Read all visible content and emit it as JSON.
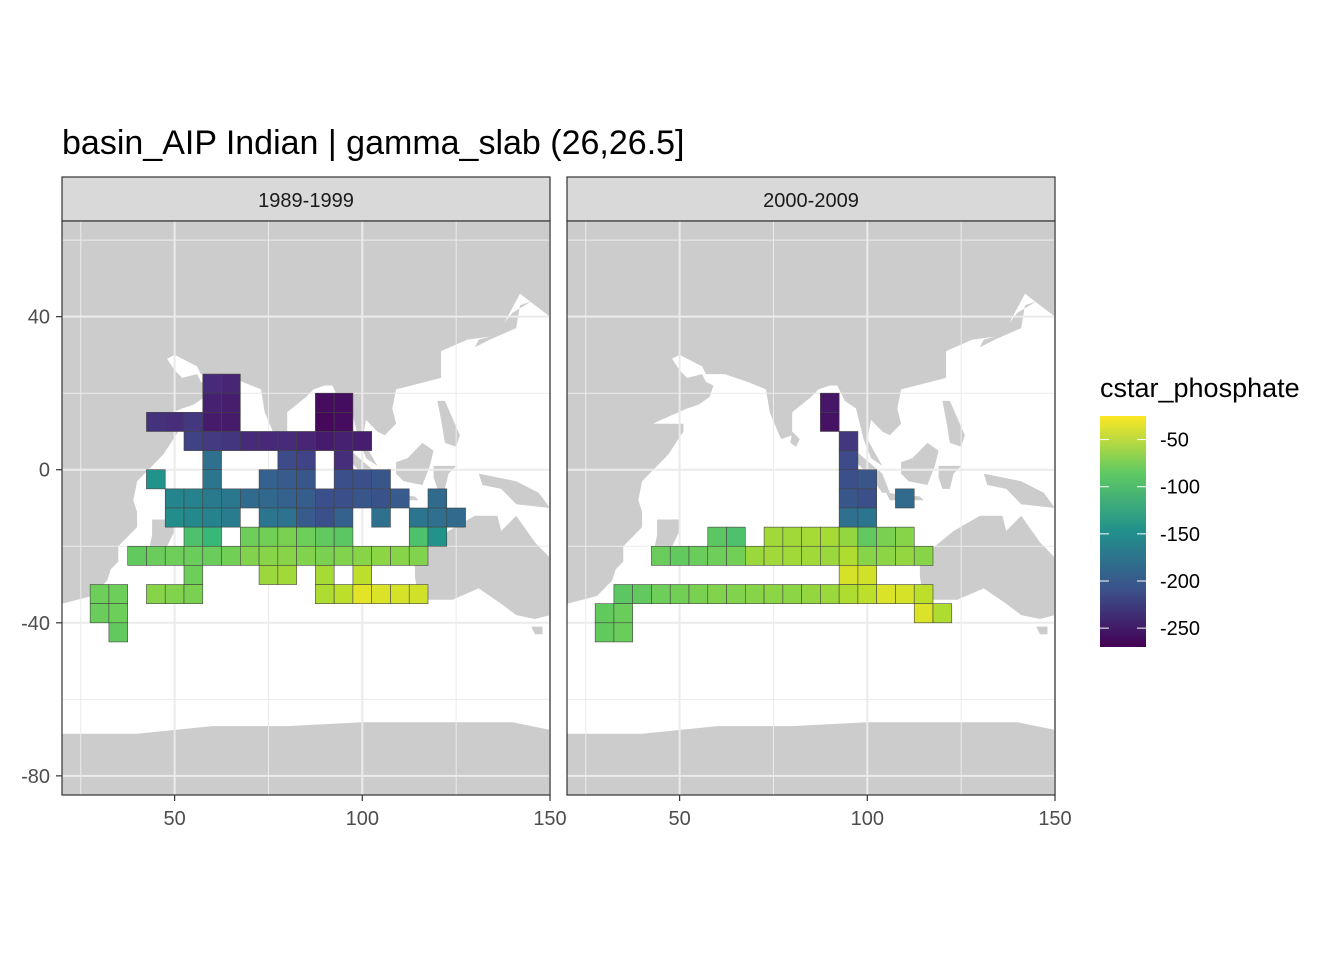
{
  "chart_data": {
    "type": "heatmap",
    "title": "basin_AIP Indian | gamma_slab (26,26.5]",
    "xlabel": "",
    "ylabel": "",
    "xlim": [
      20,
      150
    ],
    "ylim": [
      -85,
      65
    ],
    "x_ticks": [
      50,
      100,
      150
    ],
    "y_ticks": [
      40,
      0,
      -40,
      -80
    ],
    "x_tick_labels": [
      "50",
      "100",
      "150"
    ],
    "y_tick_labels": [
      "40",
      "0",
      "-40",
      "-80"
    ],
    "grid": true,
    "cell_size_deg": 5,
    "legend": {
      "title": "cstar_phosphate",
      "position": "right",
      "breaks": [
        -50,
        -100,
        -150,
        -200,
        -250
      ],
      "labels": [
        "-50",
        "-100",
        "-150",
        "-200",
        "-250"
      ],
      "limits": [
        -270,
        -25
      ],
      "colormap": "viridis"
    },
    "colors": {
      "land": "#cccccc",
      "ocean": "#ffffff",
      "strip": "#d9d9d9",
      "grid": "#ebebeb",
      "border": "#333333"
    },
    "panels": [
      {
        "label": "1989-1999",
        "cells": [
          {
            "lon": 60,
            "lat": 22.5,
            "v": -240
          },
          {
            "lon": 65,
            "lat": 22.5,
            "v": -245
          },
          {
            "lon": 60,
            "lat": 17.5,
            "v": -248
          },
          {
            "lon": 65,
            "lat": 17.5,
            "v": -250
          },
          {
            "lon": 90,
            "lat": 17.5,
            "v": -262
          },
          {
            "lon": 95,
            "lat": 17.5,
            "v": -262
          },
          {
            "lon": 45,
            "lat": 12.5,
            "v": -235
          },
          {
            "lon": 50,
            "lat": 12.5,
            "v": -238
          },
          {
            "lon": 55,
            "lat": 12.5,
            "v": -230
          },
          {
            "lon": 60,
            "lat": 12.5,
            "v": -252
          },
          {
            "lon": 65,
            "lat": 12.5,
            "v": -252
          },
          {
            "lon": 90,
            "lat": 12.5,
            "v": -265
          },
          {
            "lon": 95,
            "lat": 12.5,
            "v": -262
          },
          {
            "lon": 55,
            "lat": 7.5,
            "v": -222
          },
          {
            "lon": 60,
            "lat": 7.5,
            "v": -228
          },
          {
            "lon": 65,
            "lat": 7.5,
            "v": -232
          },
          {
            "lon": 70,
            "lat": 7.5,
            "v": -240
          },
          {
            "lon": 75,
            "lat": 7.5,
            "v": -242
          },
          {
            "lon": 80,
            "lat": 7.5,
            "v": -240
          },
          {
            "lon": 85,
            "lat": 7.5,
            "v": -245
          },
          {
            "lon": 90,
            "lat": 7.5,
            "v": -252
          },
          {
            "lon": 95,
            "lat": 7.5,
            "v": -248
          },
          {
            "lon": 100,
            "lat": 7.5,
            "v": -250
          },
          {
            "lon": 60,
            "lat": 2.5,
            "v": -180
          },
          {
            "lon": 80,
            "lat": 2.5,
            "v": -215
          },
          {
            "lon": 85,
            "lat": 2.5,
            "v": -220
          },
          {
            "lon": 95,
            "lat": 2.5,
            "v": -238
          },
          {
            "lon": 45,
            "lat": -2.5,
            "v": -145
          },
          {
            "lon": 60,
            "lat": -2.5,
            "v": -175
          },
          {
            "lon": 75,
            "lat": -2.5,
            "v": -195
          },
          {
            "lon": 80,
            "lat": -2.5,
            "v": -200
          },
          {
            "lon": 85,
            "lat": -2.5,
            "v": -205
          },
          {
            "lon": 95,
            "lat": -2.5,
            "v": -210
          },
          {
            "lon": 100,
            "lat": -2.5,
            "v": -210
          },
          {
            "lon": 105,
            "lat": -2.5,
            "v": -205
          },
          {
            "lon": 50,
            "lat": -7.5,
            "v": -158
          },
          {
            "lon": 55,
            "lat": -7.5,
            "v": -160
          },
          {
            "lon": 60,
            "lat": -7.5,
            "v": -170
          },
          {
            "lon": 65,
            "lat": -7.5,
            "v": -172
          },
          {
            "lon": 70,
            "lat": -7.5,
            "v": -185
          },
          {
            "lon": 75,
            "lat": -7.5,
            "v": -188
          },
          {
            "lon": 80,
            "lat": -7.5,
            "v": -195
          },
          {
            "lon": 85,
            "lat": -7.5,
            "v": -198
          },
          {
            "lon": 90,
            "lat": -7.5,
            "v": -210
          },
          {
            "lon": 95,
            "lat": -7.5,
            "v": -210
          },
          {
            "lon": 100,
            "lat": -7.5,
            "v": -205
          },
          {
            "lon": 105,
            "lat": -7.5,
            "v": -208
          },
          {
            "lon": 110,
            "lat": -7.5,
            "v": -200
          },
          {
            "lon": 120,
            "lat": -7.5,
            "v": -185
          },
          {
            "lon": 50,
            "lat": -12.5,
            "v": -150
          },
          {
            "lon": 55,
            "lat": -12.5,
            "v": -155
          },
          {
            "lon": 60,
            "lat": -12.5,
            "v": -160
          },
          {
            "lon": 65,
            "lat": -12.5,
            "v": -168
          },
          {
            "lon": 75,
            "lat": -12.5,
            "v": -175
          },
          {
            "lon": 80,
            "lat": -12.5,
            "v": -178
          },
          {
            "lon": 85,
            "lat": -12.5,
            "v": -200
          },
          {
            "lon": 90,
            "lat": -12.5,
            "v": -210
          },
          {
            "lon": 95,
            "lat": -12.5,
            "v": -195
          },
          {
            "lon": 105,
            "lat": -12.5,
            "v": -180
          },
          {
            "lon": 115,
            "lat": -12.5,
            "v": -175
          },
          {
            "lon": 120,
            "lat": -12.5,
            "v": -180
          },
          {
            "lon": 125,
            "lat": -12.5,
            "v": -185
          },
          {
            "lon": 55,
            "lat": -17.5,
            "v": -95
          },
          {
            "lon": 60,
            "lat": -17.5,
            "v": -105
          },
          {
            "lon": 70,
            "lat": -17.5,
            "v": -80
          },
          {
            "lon": 75,
            "lat": -17.5,
            "v": -78
          },
          {
            "lon": 80,
            "lat": -17.5,
            "v": -75
          },
          {
            "lon": 85,
            "lat": -17.5,
            "v": -80
          },
          {
            "lon": 90,
            "lat": -17.5,
            "v": -85
          },
          {
            "lon": 95,
            "lat": -17.5,
            "v": -88
          },
          {
            "lon": 115,
            "lat": -17.5,
            "v": -95
          },
          {
            "lon": 120,
            "lat": -17.5,
            "v": -145
          },
          {
            "lon": 40,
            "lat": -22.5,
            "v": -85
          },
          {
            "lon": 45,
            "lat": -22.5,
            "v": -82
          },
          {
            "lon": 50,
            "lat": -22.5,
            "v": -80
          },
          {
            "lon": 55,
            "lat": -22.5,
            "v": -82
          },
          {
            "lon": 60,
            "lat": -22.5,
            "v": -82
          },
          {
            "lon": 65,
            "lat": -22.5,
            "v": -78
          },
          {
            "lon": 70,
            "lat": -22.5,
            "v": -72
          },
          {
            "lon": 75,
            "lat": -22.5,
            "v": -70
          },
          {
            "lon": 80,
            "lat": -22.5,
            "v": -70
          },
          {
            "lon": 85,
            "lat": -22.5,
            "v": -72
          },
          {
            "lon": 90,
            "lat": -22.5,
            "v": -75
          },
          {
            "lon": 95,
            "lat": -22.5,
            "v": -72
          },
          {
            "lon": 100,
            "lat": -22.5,
            "v": -70
          },
          {
            "lon": 105,
            "lat": -22.5,
            "v": -68
          },
          {
            "lon": 110,
            "lat": -22.5,
            "v": -70
          },
          {
            "lon": 115,
            "lat": -22.5,
            "v": -72
          },
          {
            "lon": 55,
            "lat": -27.5,
            "v": -80
          },
          {
            "lon": 75,
            "lat": -27.5,
            "v": -62
          },
          {
            "lon": 80,
            "lat": -27.5,
            "v": -60
          },
          {
            "lon": 90,
            "lat": -27.5,
            "v": -58
          },
          {
            "lon": 100,
            "lat": -27.5,
            "v": -50
          },
          {
            "lon": 30,
            "lat": -32.5,
            "v": -80
          },
          {
            "lon": 35,
            "lat": -32.5,
            "v": -80
          },
          {
            "lon": 45,
            "lat": -32.5,
            "v": -70
          },
          {
            "lon": 50,
            "lat": -32.5,
            "v": -72
          },
          {
            "lon": 55,
            "lat": -32.5,
            "v": -75
          },
          {
            "lon": 90,
            "lat": -32.5,
            "v": -55
          },
          {
            "lon": 95,
            "lat": -32.5,
            "v": -50
          },
          {
            "lon": 100,
            "lat": -32.5,
            "v": -35
          },
          {
            "lon": 105,
            "lat": -32.5,
            "v": -38
          },
          {
            "lon": 110,
            "lat": -32.5,
            "v": -40
          },
          {
            "lon": 115,
            "lat": -32.5,
            "v": -42
          },
          {
            "lon": 30,
            "lat": -37.5,
            "v": -82
          },
          {
            "lon": 35,
            "lat": -37.5,
            "v": -80
          },
          {
            "lon": 35,
            "lat": -42.5,
            "v": -85
          }
        ]
      },
      {
        "label": "2000-2009",
        "cells": [
          {
            "lon": 90,
            "lat": 17.5,
            "v": -255
          },
          {
            "lon": 90,
            "lat": 12.5,
            "v": -258
          },
          {
            "lon": 95,
            "lat": 7.5,
            "v": -230
          },
          {
            "lon": 95,
            "lat": 2.5,
            "v": -215
          },
          {
            "lon": 95,
            "lat": -2.5,
            "v": -210
          },
          {
            "lon": 100,
            "lat": -2.5,
            "v": -205
          },
          {
            "lon": 95,
            "lat": -7.5,
            "v": -205
          },
          {
            "lon": 100,
            "lat": -7.5,
            "v": -210
          },
          {
            "lon": 110,
            "lat": -7.5,
            "v": -185
          },
          {
            "lon": 95,
            "lat": -12.5,
            "v": -180
          },
          {
            "lon": 100,
            "lat": -12.5,
            "v": -175
          },
          {
            "lon": 60,
            "lat": -17.5,
            "v": -88
          },
          {
            "lon": 65,
            "lat": -17.5,
            "v": -95
          },
          {
            "lon": 75,
            "lat": -17.5,
            "v": -60
          },
          {
            "lon": 80,
            "lat": -17.5,
            "v": -60
          },
          {
            "lon": 85,
            "lat": -17.5,
            "v": -58
          },
          {
            "lon": 90,
            "lat": -17.5,
            "v": -58
          },
          {
            "lon": 95,
            "lat": -17.5,
            "v": -65
          },
          {
            "lon": 100,
            "lat": -17.5,
            "v": -85
          },
          {
            "lon": 105,
            "lat": -17.5,
            "v": -75
          },
          {
            "lon": 110,
            "lat": -17.5,
            "v": -70
          },
          {
            "lon": 45,
            "lat": -22.5,
            "v": -82
          },
          {
            "lon": 50,
            "lat": -22.5,
            "v": -85
          },
          {
            "lon": 55,
            "lat": -22.5,
            "v": -82
          },
          {
            "lon": 60,
            "lat": -22.5,
            "v": -80
          },
          {
            "lon": 65,
            "lat": -22.5,
            "v": -78
          },
          {
            "lon": 70,
            "lat": -22.5,
            "v": -62
          },
          {
            "lon": 75,
            "lat": -22.5,
            "v": -60
          },
          {
            "lon": 80,
            "lat": -22.5,
            "v": -60
          },
          {
            "lon": 85,
            "lat": -22.5,
            "v": -60
          },
          {
            "lon": 90,
            "lat": -22.5,
            "v": -62
          },
          {
            "lon": 95,
            "lat": -22.5,
            "v": -55
          },
          {
            "lon": 100,
            "lat": -22.5,
            "v": -70
          },
          {
            "lon": 105,
            "lat": -22.5,
            "v": -68
          },
          {
            "lon": 110,
            "lat": -22.5,
            "v": -65
          },
          {
            "lon": 115,
            "lat": -22.5,
            "v": -70
          },
          {
            "lon": 95,
            "lat": -27.5,
            "v": -40
          },
          {
            "lon": 100,
            "lat": -27.5,
            "v": -42
          },
          {
            "lon": 35,
            "lat": -32.5,
            "v": -88
          },
          {
            "lon": 40,
            "lat": -32.5,
            "v": -85
          },
          {
            "lon": 45,
            "lat": -32.5,
            "v": -80
          },
          {
            "lon": 50,
            "lat": -32.5,
            "v": -78
          },
          {
            "lon": 55,
            "lat": -32.5,
            "v": -75
          },
          {
            "lon": 60,
            "lat": -32.5,
            "v": -72
          },
          {
            "lon": 65,
            "lat": -32.5,
            "v": -72
          },
          {
            "lon": 70,
            "lat": -32.5,
            "v": -70
          },
          {
            "lon": 75,
            "lat": -32.5,
            "v": -68
          },
          {
            "lon": 80,
            "lat": -32.5,
            "v": -68
          },
          {
            "lon": 85,
            "lat": -32.5,
            "v": -65
          },
          {
            "lon": 90,
            "lat": -32.5,
            "v": -62
          },
          {
            "lon": 95,
            "lat": -32.5,
            "v": -55
          },
          {
            "lon": 100,
            "lat": -32.5,
            "v": -50
          },
          {
            "lon": 105,
            "lat": -32.5,
            "v": -38
          },
          {
            "lon": 110,
            "lat": -32.5,
            "v": -40
          },
          {
            "lon": 115,
            "lat": -32.5,
            "v": -50
          },
          {
            "lon": 30,
            "lat": -37.5,
            "v": -85
          },
          {
            "lon": 35,
            "lat": -37.5,
            "v": -82
          },
          {
            "lon": 115,
            "lat": -37.5,
            "v": -38
          },
          {
            "lon": 120,
            "lat": -37.5,
            "v": -55
          },
          {
            "lon": 30,
            "lat": -42.5,
            "v": -85
          },
          {
            "lon": 35,
            "lat": -42.5,
            "v": -82
          }
        ]
      }
    ]
  }
}
